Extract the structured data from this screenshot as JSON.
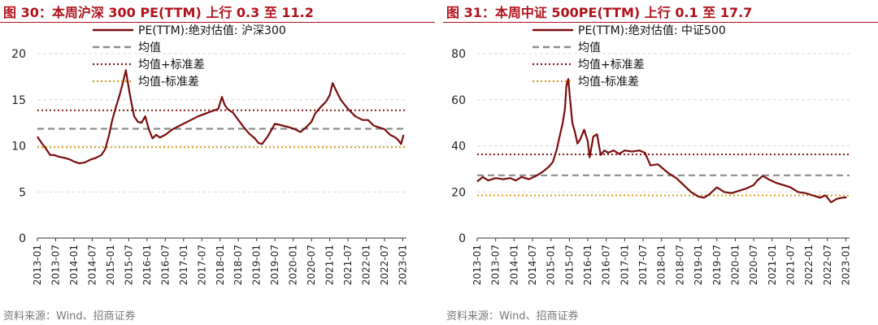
{
  "colors": {
    "title": "#b0121b",
    "pe": "#7a0c0c",
    "mean": "#8c8c8c",
    "plus_std": "#8b1a1a",
    "minus_std": "#d4a017",
    "grid": "#d9d9d9",
    "source": "#777777"
  },
  "chart_data": [
    {
      "type": "line",
      "title": "图 30：本周沪深 300 PE(TTM) 上行 0.3 至 11.2",
      "source": "资料来源：Wind、招商证券",
      "ylim": [
        0,
        20
      ],
      "yticks": [
        0,
        5,
        10,
        15,
        20
      ],
      "ytick_labels": [
        "0",
        "5",
        "10",
        "15",
        "20"
      ],
      "x_range": [
        2013.0,
        2023.1
      ],
      "xticks": [
        2013.0,
        2013.5,
        2014.0,
        2014.5,
        2015.0,
        2015.5,
        2016.0,
        2016.5,
        2017.0,
        2017.5,
        2018.0,
        2018.5,
        2019.0,
        2019.5,
        2020.0,
        2020.5,
        2021.0,
        2021.5,
        2022.0,
        2022.5,
        2023.0
      ],
      "xtick_labels": [
        "2013-01",
        "2013-07",
        "2014-01",
        "2014-07",
        "2015-01",
        "2015-07",
        "2016-01",
        "2016-07",
        "2017-01",
        "2017-07",
        "2018-01",
        "2018-07",
        "2019-01",
        "2019-07",
        "2020-01",
        "2020-07",
        "2021-01",
        "2021-07",
        "2022-01",
        "2022-07",
        "2023-01"
      ],
      "grid": true,
      "legend_position": "top",
      "series": [
        {
          "name": "PE(TTM):绝对估值: 沪深300",
          "style": "solid",
          "x": [
            2013.0,
            2013.1,
            2013.25,
            2013.35,
            2013.45,
            2013.6,
            2013.75,
            2013.9,
            2014.0,
            2014.15,
            2014.3,
            2014.45,
            2014.6,
            2014.75,
            2014.85,
            2014.95,
            2015.05,
            2015.15,
            2015.25,
            2015.35,
            2015.42,
            2015.47,
            2015.52,
            2015.58,
            2015.65,
            2015.75,
            2015.85,
            2015.95,
            2016.05,
            2016.15,
            2016.25,
            2016.35,
            2016.5,
            2016.7,
            2016.9,
            2017.0,
            2017.2,
            2017.4,
            2017.6,
            2017.8,
            2017.95,
            2018.05,
            2018.12,
            2018.2,
            2018.35,
            2018.5,
            2018.65,
            2018.8,
            2018.95,
            2019.05,
            2019.15,
            2019.3,
            2019.5,
            2019.7,
            2019.9,
            2020.05,
            2020.2,
            2020.35,
            2020.5,
            2020.6,
            2020.75,
            2020.9,
            2021.0,
            2021.08,
            2021.15,
            2021.3,
            2021.5,
            2021.7,
            2021.9,
            2022.05,
            2022.2,
            2022.35,
            2022.5,
            2022.65,
            2022.8,
            2022.88,
            2022.95,
            2023.02
          ],
          "y": [
            11.0,
            10.4,
            9.6,
            9.0,
            9.0,
            8.8,
            8.7,
            8.5,
            8.3,
            8.1,
            8.2,
            8.5,
            8.7,
            9.0,
            9.6,
            11.0,
            12.8,
            14.2,
            15.5,
            17.0,
            18.2,
            17.0,
            15.8,
            14.5,
            13.2,
            12.6,
            12.5,
            13.2,
            11.8,
            10.8,
            11.2,
            10.9,
            11.2,
            11.8,
            12.2,
            12.4,
            12.8,
            13.2,
            13.5,
            13.8,
            14.0,
            15.3,
            14.5,
            14.0,
            13.6,
            12.8,
            12.0,
            11.3,
            10.8,
            10.3,
            10.2,
            11.0,
            12.4,
            12.2,
            12.0,
            11.8,
            11.5,
            12.0,
            12.6,
            13.5,
            14.2,
            14.8,
            15.5,
            16.8,
            16.2,
            15.0,
            14.0,
            13.2,
            12.8,
            12.8,
            12.2,
            12.0,
            11.8,
            11.2,
            10.9,
            10.6,
            10.2,
            11.2
          ]
        },
        {
          "name": "均值",
          "style": "dashed",
          "value": 11.85
        },
        {
          "name": "均值+标准差",
          "style": "dotted",
          "value": 13.85
        },
        {
          "name": "均值-标准差",
          "style": "dotted",
          "value": 9.85
        }
      ]
    },
    {
      "type": "line",
      "title": "图 31：本周中证 500PE(TTM) 上行 0.1 至 17.7",
      "source": "资料来源：Wind、招商证券",
      "ylim": [
        0,
        80
      ],
      "yticks": [
        0,
        20,
        40,
        60,
        80
      ],
      "ytick_labels": [
        "0",
        "20",
        "40",
        "60",
        "80"
      ],
      "x_range": [
        2013.0,
        2023.1
      ],
      "xticks": [
        2013.0,
        2013.5,
        2014.0,
        2014.5,
        2015.0,
        2015.5,
        2016.0,
        2016.5,
        2017.0,
        2017.5,
        2018.0,
        2018.5,
        2019.0,
        2019.5,
        2020.0,
        2020.5,
        2021.0,
        2021.5,
        2022.0,
        2022.5,
        2023.0
      ],
      "xtick_labels": [
        "2013-01",
        "2013-07",
        "2014-01",
        "2014-07",
        "2015-01",
        "2015-07",
        "2016-01",
        "2016-07",
        "2017-01",
        "2017-07",
        "2018-01",
        "2018-07",
        "2019-01",
        "2019-07",
        "2020-01",
        "2020-07",
        "2021-01",
        "2021-07",
        "2022-01",
        "2022-07",
        "2023-01"
      ],
      "grid": true,
      "legend_position": "top",
      "series": [
        {
          "name": "PE(TTM):绝对估值: 中证500",
          "style": "solid",
          "x": [
            2013.0,
            2013.15,
            2013.3,
            2013.5,
            2013.7,
            2013.9,
            2014.05,
            2014.2,
            2014.4,
            2014.6,
            2014.8,
            2014.95,
            2015.05,
            2015.15,
            2015.25,
            2015.32,
            2015.38,
            2015.42,
            2015.47,
            2015.52,
            2015.58,
            2015.65,
            2015.72,
            2015.8,
            2015.9,
            2016.0,
            2016.05,
            2016.15,
            2016.25,
            2016.35,
            2016.45,
            2016.55,
            2016.7,
            2016.85,
            2017.0,
            2017.2,
            2017.4,
            2017.55,
            2017.7,
            2017.9,
            2018.05,
            2018.2,
            2018.4,
            2018.6,
            2018.8,
            2019.0,
            2019.15,
            2019.3,
            2019.5,
            2019.7,
            2019.9,
            2020.1,
            2020.3,
            2020.5,
            2020.6,
            2020.75,
            2020.9,
            2021.1,
            2021.3,
            2021.5,
            2021.7,
            2021.9,
            2022.1,
            2022.3,
            2022.45,
            2022.6,
            2022.75,
            2022.9,
            2023.02
          ],
          "y": [
            24.5,
            26.5,
            25.0,
            26.0,
            25.5,
            26.0,
            25.0,
            26.5,
            25.5,
            27.0,
            29.0,
            31.0,
            33.0,
            38.0,
            45.0,
            50.0,
            56.0,
            66.0,
            69.0,
            60.0,
            50.0,
            46.0,
            41.0,
            43.0,
            47.0,
            42.0,
            35.0,
            44.0,
            45.0,
            36.0,
            38.0,
            37.0,
            38.0,
            36.5,
            38.0,
            37.5,
            38.0,
            37.0,
            31.5,
            32.0,
            30.0,
            28.0,
            26.0,
            23.0,
            20.0,
            18.0,
            17.5,
            19.0,
            22.0,
            20.0,
            19.5,
            20.5,
            21.5,
            23.0,
            25.0,
            27.0,
            25.5,
            24.0,
            23.0,
            22.0,
            20.0,
            19.5,
            18.5,
            17.5,
            18.5,
            15.5,
            17.0,
            17.5,
            17.7
          ]
        },
        {
          "name": "均值",
          "style": "dashed",
          "value": 27.2
        },
        {
          "name": "均值+标准差",
          "style": "dotted",
          "value": 36.3
        },
        {
          "name": "均值-标准差",
          "style": "dotted",
          "value": 18.5
        }
      ]
    }
  ]
}
